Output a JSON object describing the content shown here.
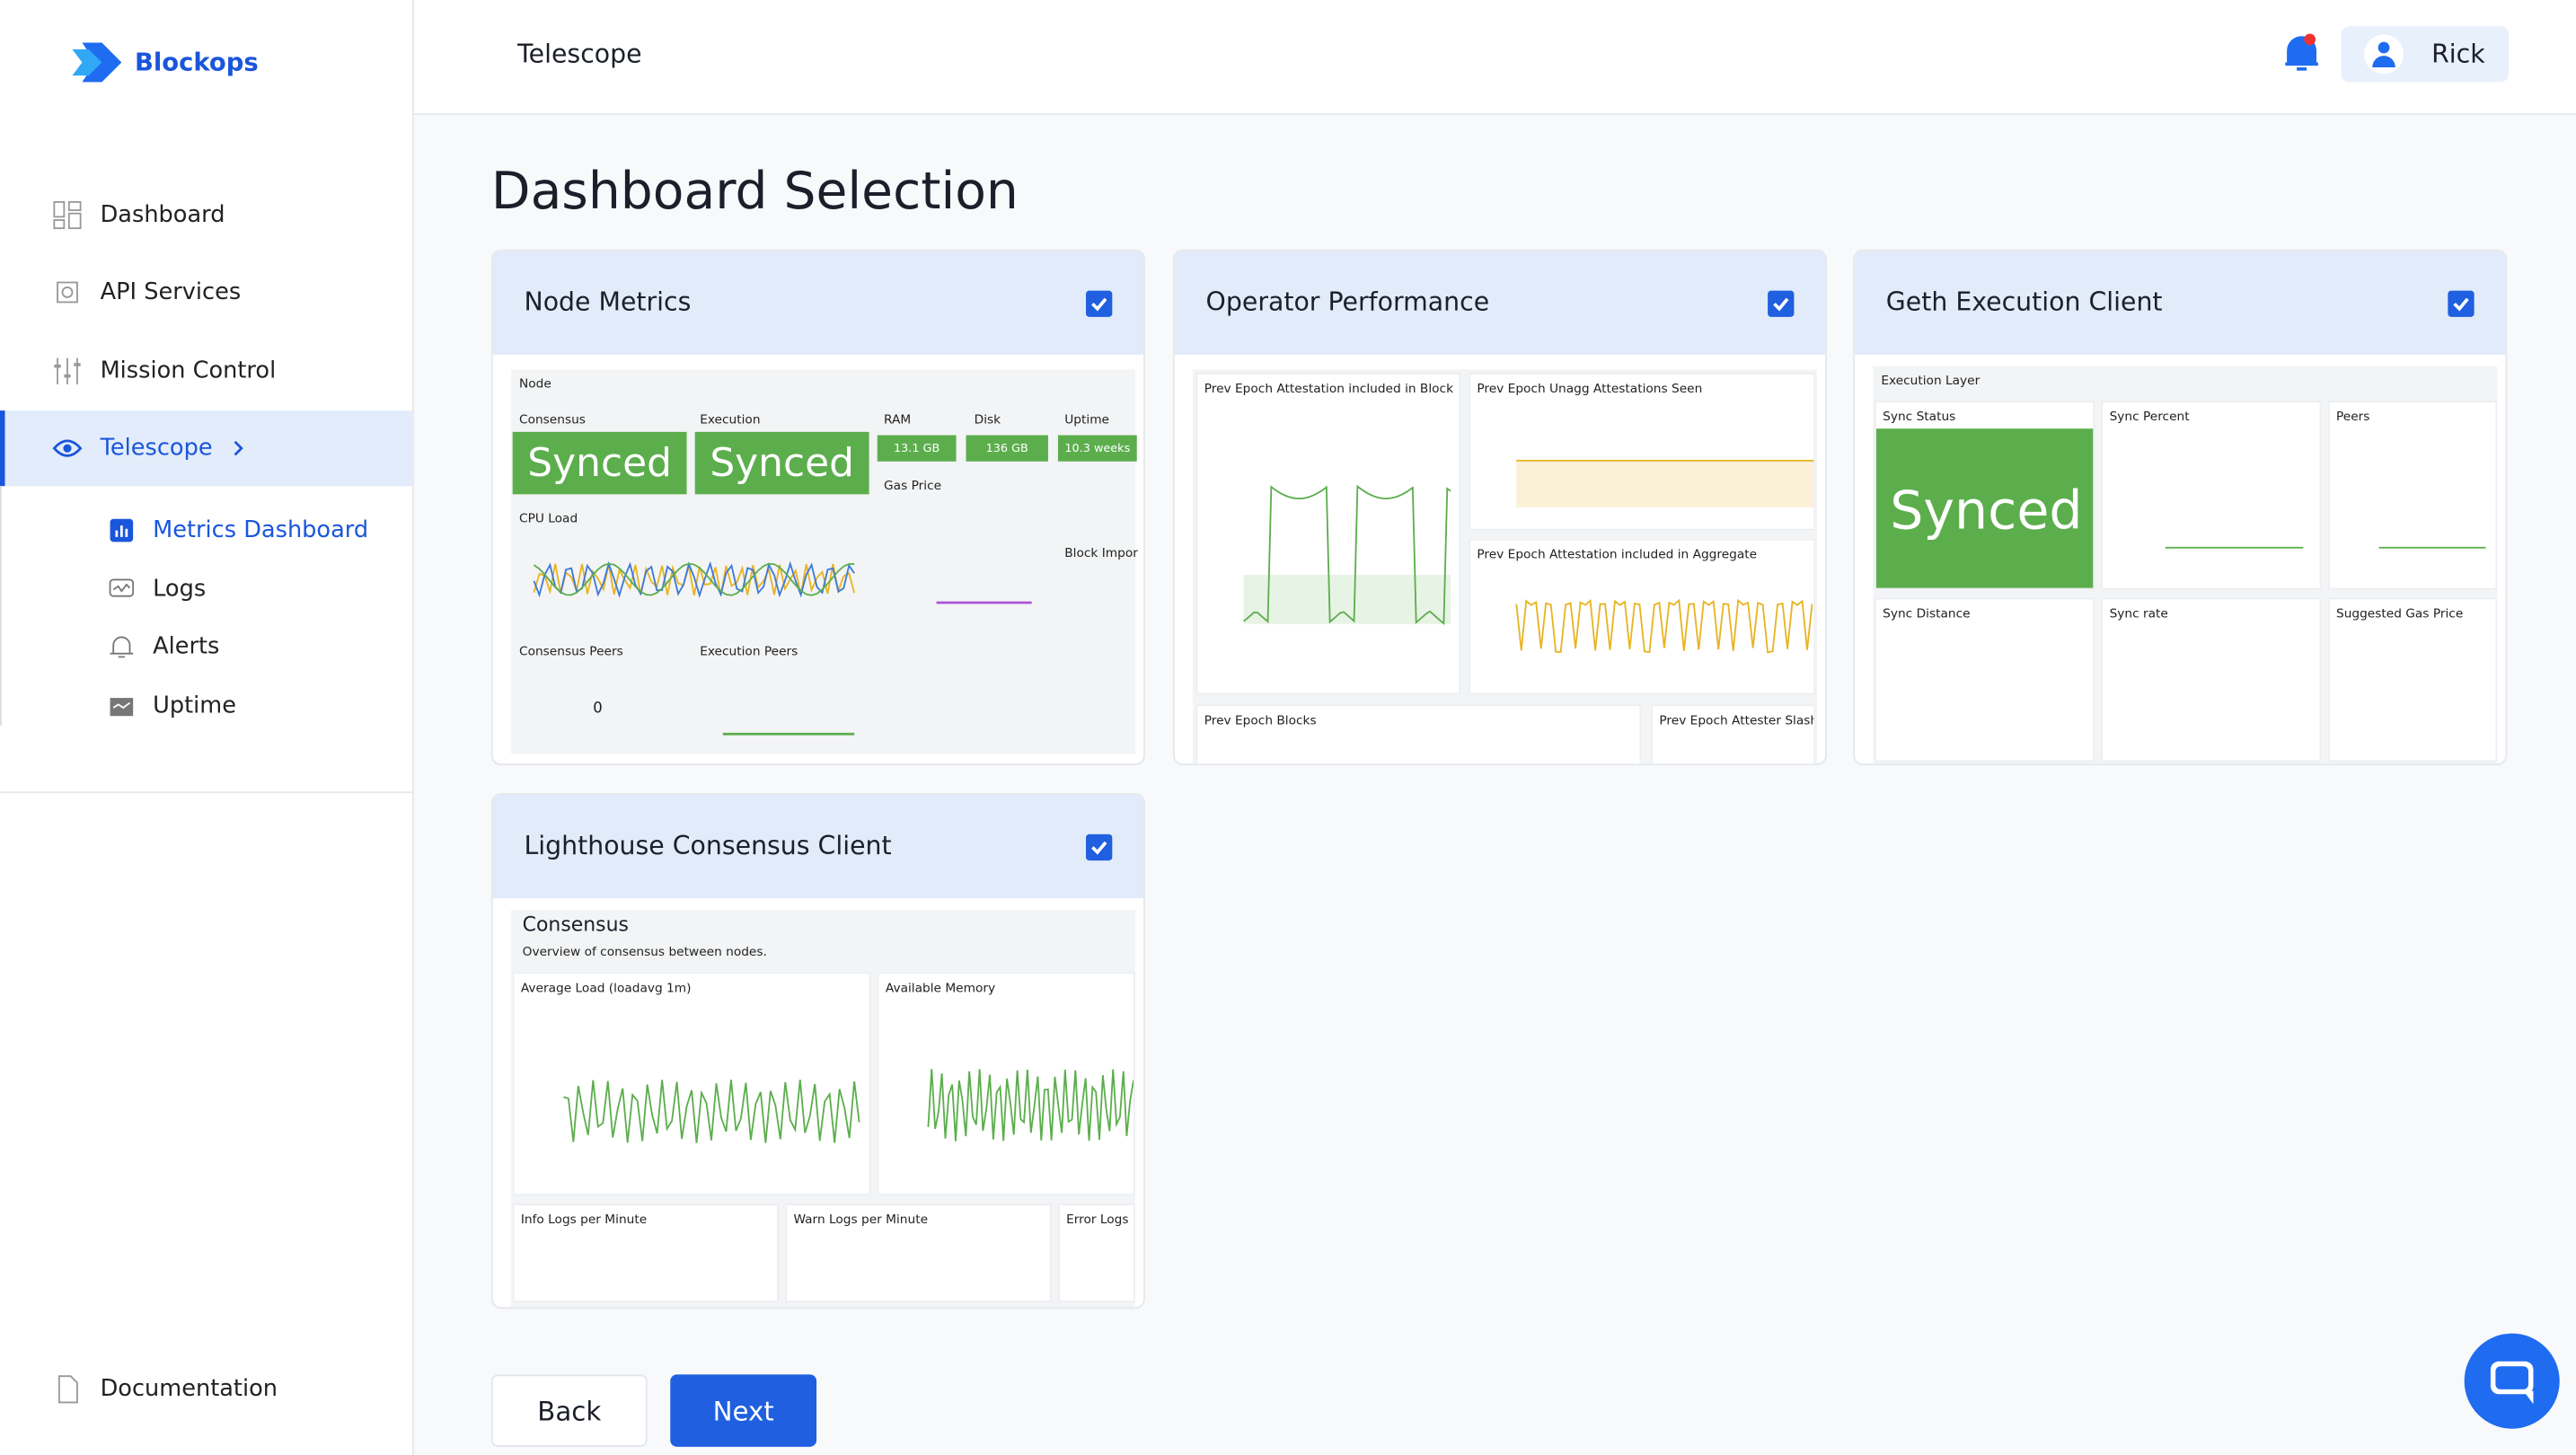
{
  "brand": "Blockops",
  "nav": [
    "Dashboard",
    "API Services",
    "Mission Control",
    "Telescope"
  ],
  "subnav": [
    "Metrics Dashboard",
    "Logs",
    "Alerts",
    "Uptime"
  ],
  "footer_nav": "Documentation",
  "header": {
    "title": "Telescope",
    "user": "Rick"
  },
  "page_title": "Dashboard Selection",
  "cards": [
    {
      "title": "Node Metrics",
      "checked": true,
      "preview": {
        "section": "Node",
        "labels": [
          "Consensus",
          "Execution",
          "RAM",
          "Disk",
          "Uptime",
          "Gas Price",
          "Block Impor",
          "CPU Load",
          "Consensus Peers",
          "Execution Peers"
        ],
        "values": [
          "Synced",
          "Synced",
          "13.1 GB",
          "136 GB",
          "10.3 weeks",
          "0"
        ]
      }
    },
    {
      "title": "Operator Performance",
      "checked": true,
      "preview": {
        "panels": [
          "Prev Epoch Attestation included in Block",
          "Prev Epoch Unagg Attestations Seen",
          "Prev Epoch Attestation included in Aggregate",
          "Prev Epoch Blocks",
          "Prev Epoch Attester Slashi"
        ]
      }
    },
    {
      "title": "Geth Execution Client",
      "checked": true,
      "preview": {
        "section": "Execution Layer",
        "panels": [
          "Sync Status",
          "Sync Percent",
          "Peers",
          "Sync Distance",
          "Sync rate",
          "Suggested Gas Price"
        ],
        "values": [
          "Synced"
        ]
      }
    },
    {
      "title": "Lighthouse Consensus Client",
      "checked": true,
      "preview": {
        "section": "Consensus",
        "subtitle": "Overview of consensus between nodes.",
        "panels": [
          "Average Load (loadavg 1m)",
          "Available Memory",
          "Info Logs per Minute",
          "Warn Logs per Minute",
          "Error Logs"
        ]
      }
    }
  ],
  "buttons": {
    "back": "Back",
    "next": "Next"
  }
}
